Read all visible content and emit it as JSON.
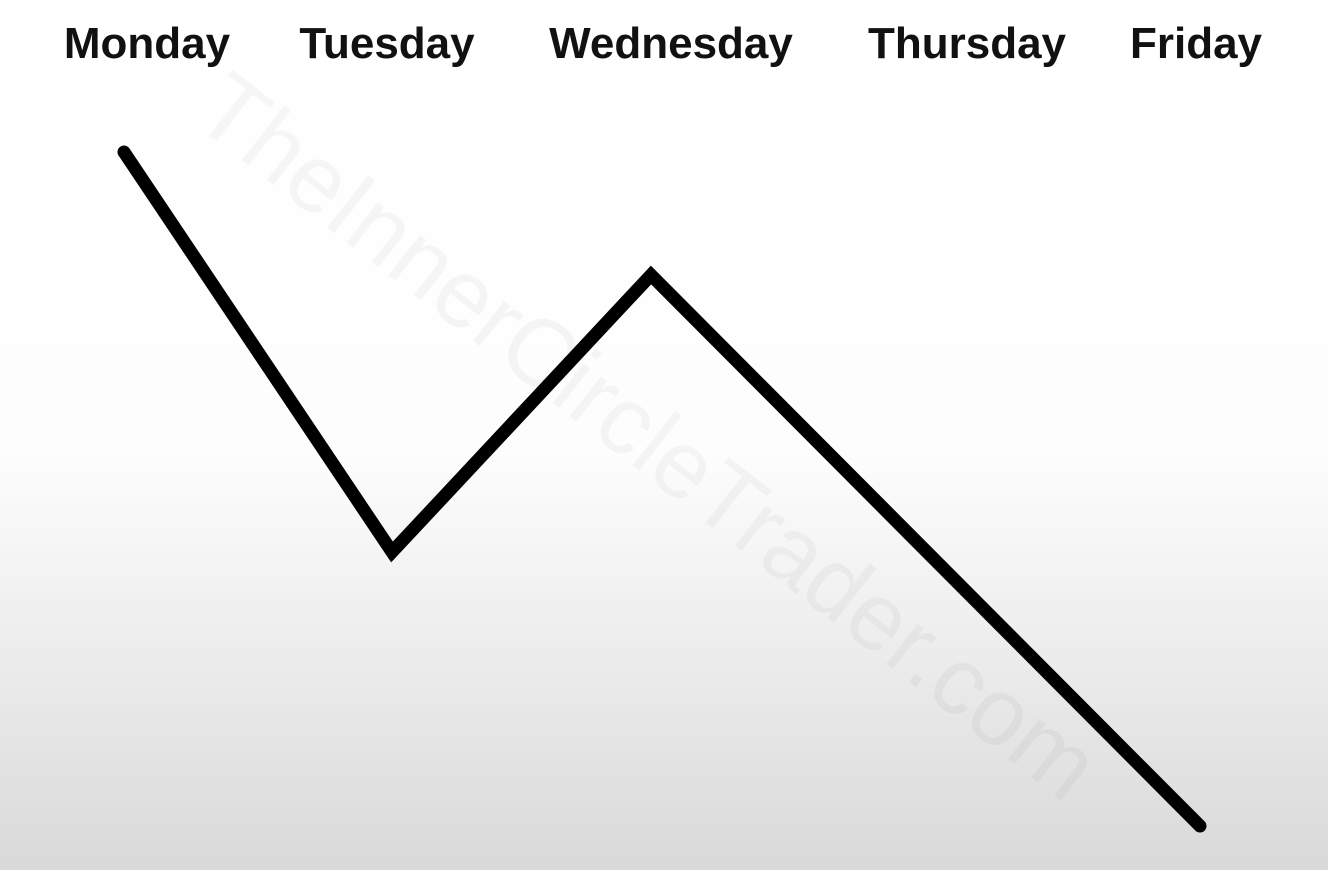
{
  "days": [
    "Monday",
    "Tuesday",
    "Wednesday",
    "Thursday",
    "Friday"
  ],
  "watermark": "TheInnerCircleTrader.com",
  "diagram": {
    "type": "weekly-price-path",
    "line_color": "#000000",
    "path_levels": [
      {
        "day": "Monday",
        "level": 1.0
      },
      {
        "day": "Tuesday",
        "level": 0.41
      },
      {
        "day": "Wednesday",
        "level": 0.82
      },
      {
        "day": "Friday",
        "level": 0.0
      }
    ]
  }
}
